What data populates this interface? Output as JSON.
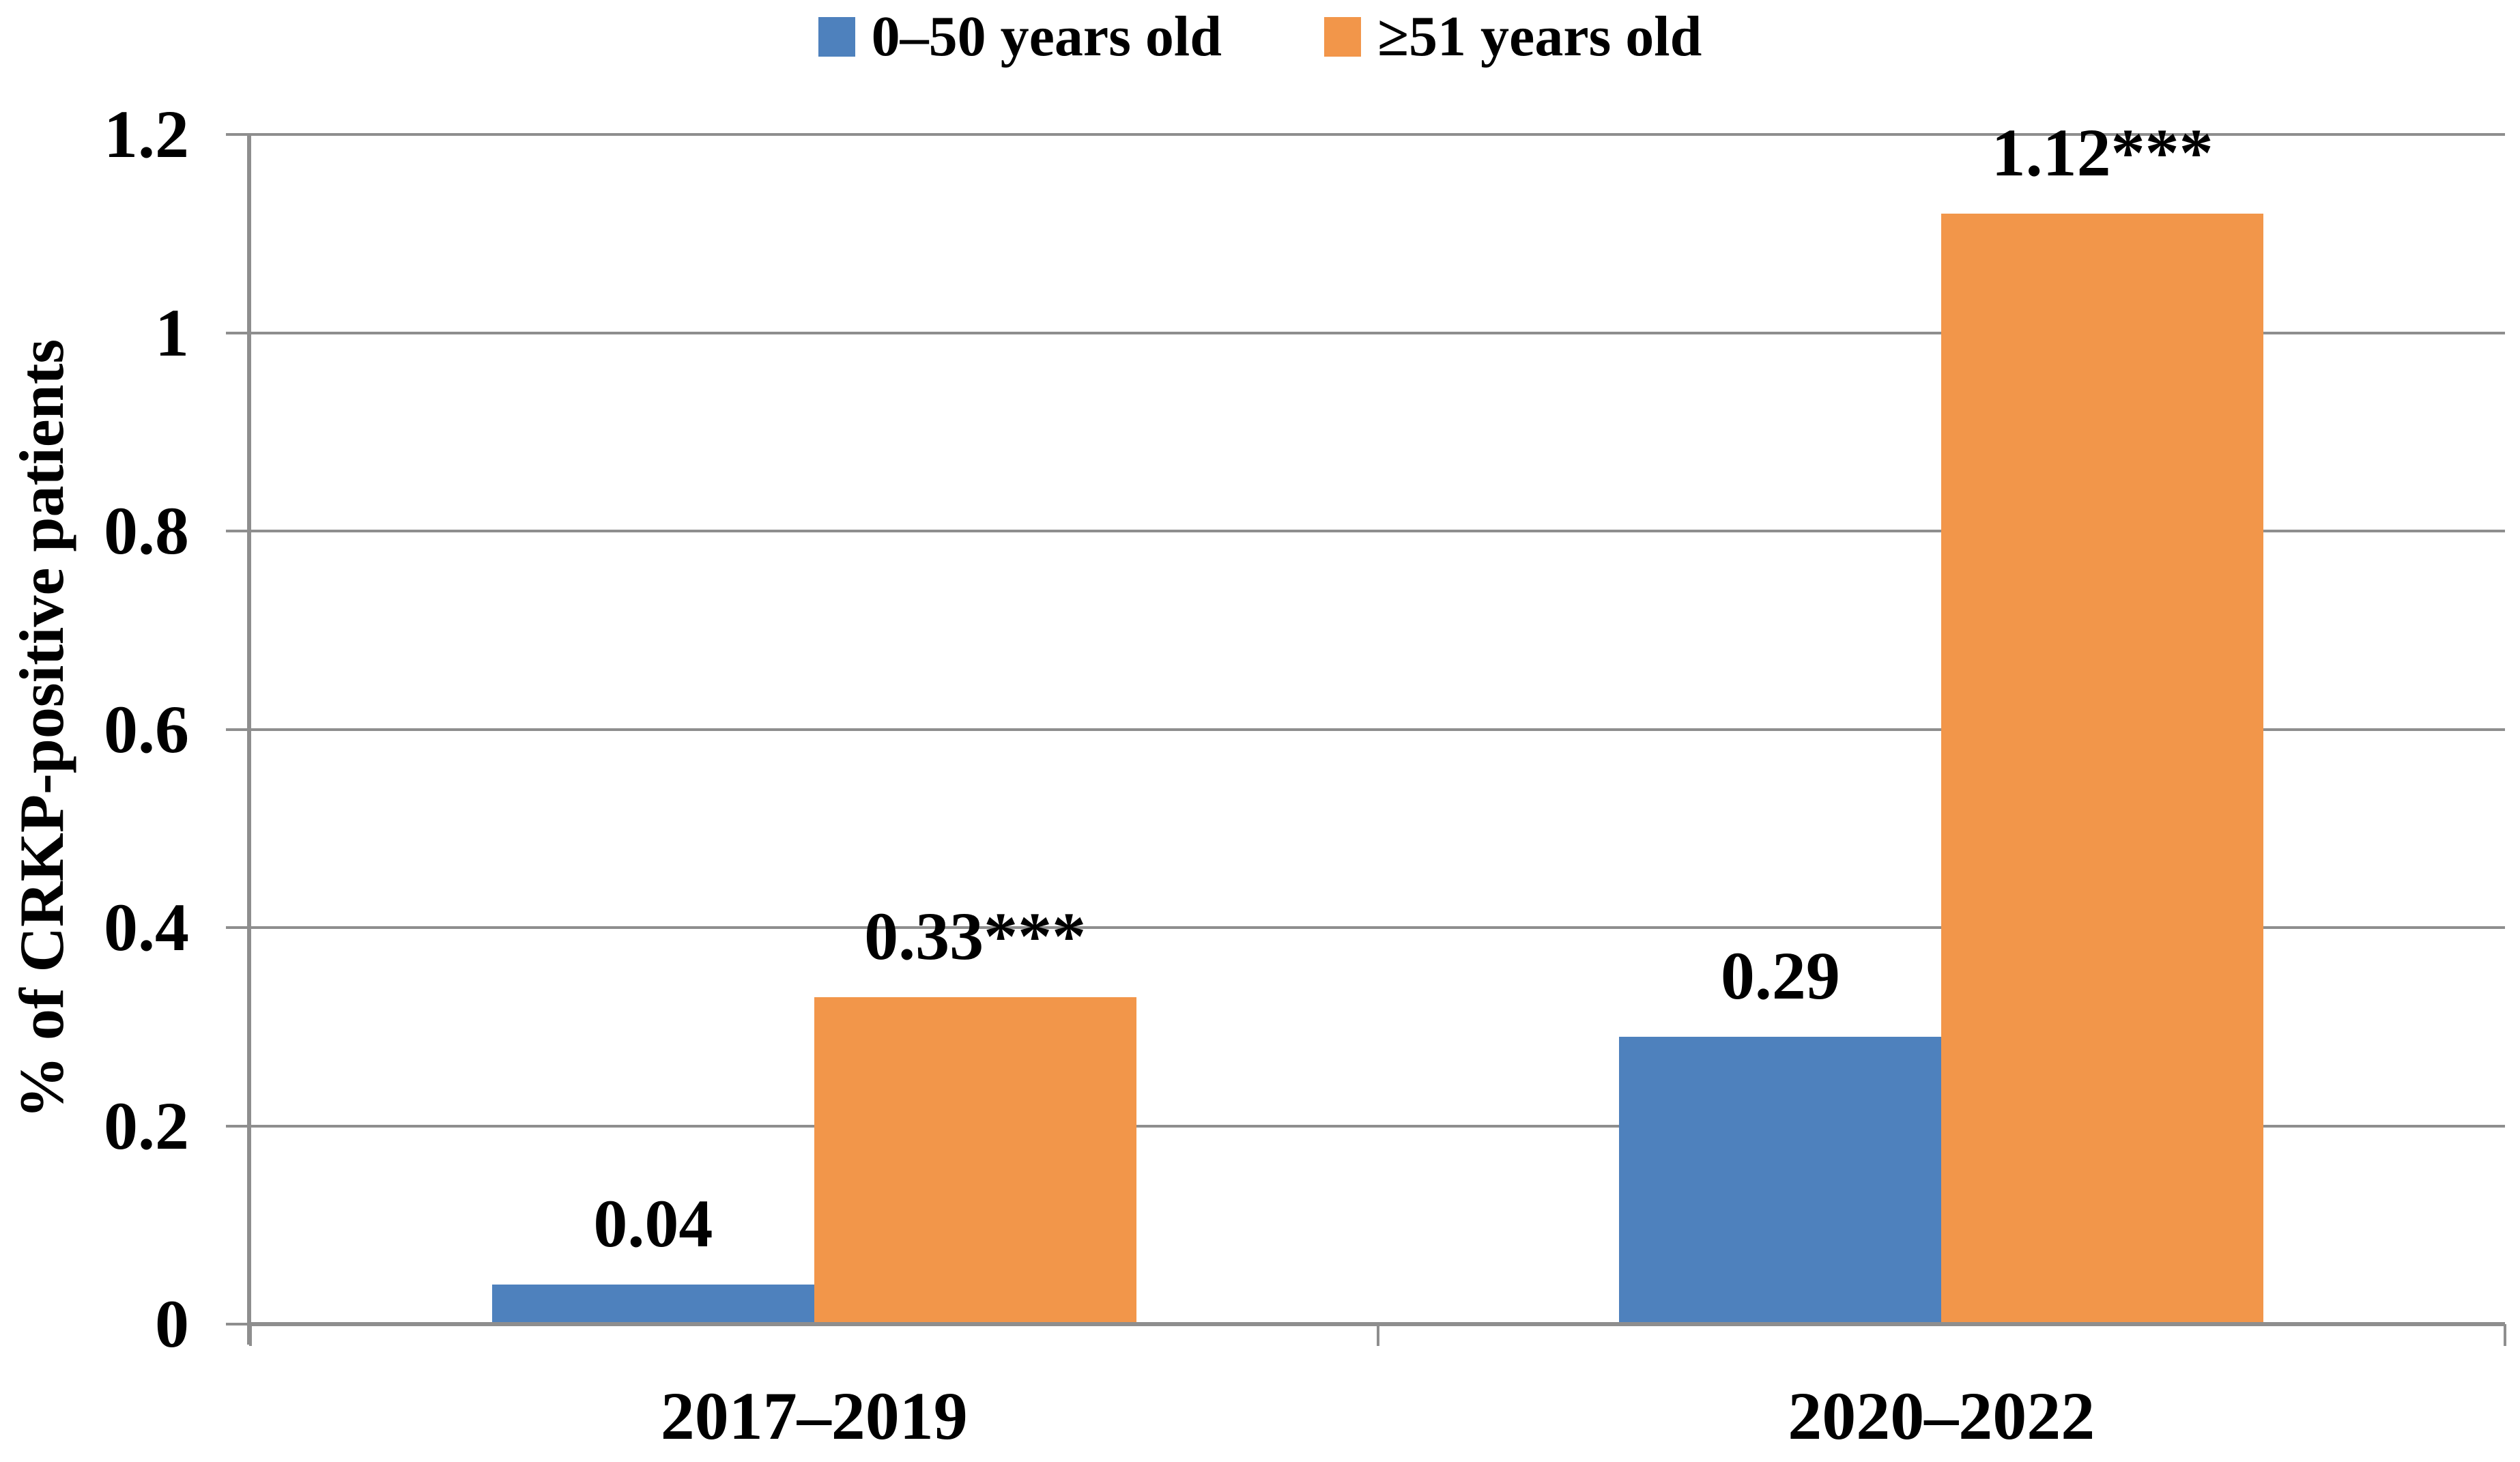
{
  "chart_data": {
    "type": "bar",
    "title": "",
    "categories": [
      "2017–2019",
      "2020–2022"
    ],
    "series": [
      {
        "name": "0–50 years old",
        "color": "#4E81BD",
        "values": [
          0.04,
          0.29
        ],
        "data_labels": [
          "0.04",
          "0.29"
        ]
      },
      {
        "name": "≥51 years old",
        "color": "#F2964A",
        "values": [
          0.33,
          1.12
        ],
        "data_labels": [
          "0.33***",
          "1.12***"
        ]
      }
    ],
    "xlabel": "",
    "ylabel": "% of CRKP-positive patients",
    "ylim": [
      0,
      1.2
    ],
    "ytick_values": [
      0,
      0.2,
      0.4,
      0.6,
      0.8,
      1,
      1.2
    ],
    "ytick_labels": [
      "0",
      "0.2",
      "0.4",
      "0.6",
      "0.8",
      "1",
      "1.2"
    ],
    "grid": true,
    "legend_position": "top-center",
    "gridline_color": "#8E8E8E",
    "axis_color": "#8E8E8E",
    "text_color": "#000000",
    "background_color": "#FFFFFF"
  }
}
